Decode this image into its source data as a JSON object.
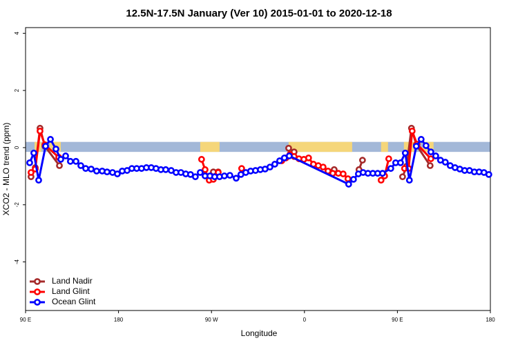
{
  "chart_data": {
    "type": "line",
    "title": "12.5N-17.5N January (Ver 10)   2015-01-01 to 2020-12-18",
    "x_label": "Longitude",
    "y_label": "XCO2 - MLO trend (ppm)",
    "xlim": [
      90,
      540
    ],
    "ylim": [
      -5.7,
      4.2
    ],
    "xticks": [
      {
        "value": 90,
        "label": "90 E"
      },
      {
        "value": 180,
        "label": "180"
      },
      {
        "value": 270,
        "label": "90 W"
      },
      {
        "value": 360,
        "label": "0"
      },
      {
        "value": 450,
        "label": "90 E"
      },
      {
        "value": 540,
        "label": "180"
      }
    ],
    "yticks": [
      4,
      2,
      0,
      -2,
      -4
    ],
    "band_ylim": [
      -0.15,
      0.2
    ],
    "band_color": "#a3b8d8",
    "land_color": "#f5d67a",
    "land_ranges": [
      [
        98.7,
        105.4
      ],
      [
        113.4,
        124.1
      ],
      [
        259.1,
        277.8
      ],
      [
        344.7,
        406.2
      ],
      [
        434.2,
        440.9
      ],
      [
        456.3,
        466.3
      ],
      [
        474.3,
        485.0
      ]
    ],
    "legend": "bottom-left",
    "series": [
      {
        "name": "Land Nadir",
        "color": "#a52a2a",
        "x": [
          95.3,
          99.4,
          104.0,
          108.7,
          122.8,
          null,
          271.8,
          276.5,
          null,
          344.7,
          350.0,
          null,
          388.8,
          null,
          412.8,
          416.2,
          null,
          455.0,
          459.0,
          463.6,
          468.3,
          481.7
        ],
        "values": [
          -1.02,
          -0.7,
          0.68,
          0.05,
          -0.63,
          null,
          -0.85,
          -0.85,
          null,
          -0.02,
          -0.15,
          null,
          -0.77,
          null,
          -0.77,
          -0.44,
          null,
          -1.02,
          -0.65,
          0.68,
          0.1,
          -0.63
        ]
      },
      {
        "name": "Land Glint",
        "color": "#ff0000",
        "x": [
          95.3,
          99.4,
          104.0,
          108.7,
          122.1,
          null,
          260.4,
          263.8,
          267.8,
          271.8,
          276.5,
          null,
          299.2,
          null,
          338.0,
          342.0,
          346.0,
          350.0,
          354.7,
          359.4,
          364.0,
          368.7,
          373.4,
          378.1,
          382.8,
          387.4,
          392.8,
          397.5,
          402.1,
          null,
          434.2,
          437.6,
          441.6,
          null,
          456.9,
          460.9,
          464.3,
          469.0,
          482.4
        ],
        "values": [
          -0.87,
          -0.75,
          0.58,
          0.1,
          -0.34,
          null,
          -0.41,
          -0.77,
          -1.14,
          -1.11,
          -0.87,
          null,
          -0.73,
          null,
          -0.46,
          -0.36,
          -0.24,
          -0.31,
          -0.39,
          -0.41,
          -0.36,
          -0.58,
          -0.63,
          -0.68,
          -0.82,
          -0.9,
          -0.9,
          -0.92,
          -1.09,
          null,
          -1.14,
          -0.99,
          -0.39,
          null,
          -0.73,
          -0.73,
          0.58,
          0.12,
          -0.39
        ]
      },
      {
        "name": "Ocean Glint",
        "color": "#0000ff",
        "x": [
          94.0,
          98.0,
          102.7,
          109.4,
          114.1,
          119.4,
          124.1,
          128.8,
          133.4,
          138.8,
          143.5,
          148.2,
          153.5,
          158.8,
          164.2,
          168.9,
          174.2,
          178.9,
          183.6,
          188.3,
          192.9,
          197.6,
          202.3,
          207.0,
          211.7,
          216.3,
          221.0,
          225.7,
          231.0,
          235.7,
          240.4,
          245.1,
          249.7,
          254.4,
          259.1,
          263.8,
          268.5,
          273.1,
          277.8,
          282.5,
          287.8,
          293.9,
          298.5,
          303.2,
          307.9,
          312.6,
          317.3,
          321.9,
          326.6,
          331.3,
          336.0,
          340.6,
          345.3,
          402.8,
          407.5,
          412.2,
          416.8,
          421.5,
          426.2,
          430.9,
          435.6,
          443.6,
          448.3,
          453.0,
          457.6,
          461.6,
          468.3,
          473.0,
          477.7,
          482.4,
          487.1,
          491.7,
          496.4,
          501.1,
          505.8,
          510.4,
          515.1,
          519.8,
          524.5,
          529.1,
          533.8,
          538.5
        ],
        "values": [
          -0.53,
          -0.19,
          -1.14,
          0.05,
          0.29,
          -0.05,
          -0.41,
          -0.29,
          -0.48,
          -0.48,
          -0.63,
          -0.73,
          -0.75,
          -0.82,
          -0.82,
          -0.85,
          -0.87,
          -0.92,
          -0.82,
          -0.8,
          -0.73,
          -0.73,
          -0.73,
          -0.7,
          -0.7,
          -0.73,
          -0.77,
          -0.77,
          -0.8,
          -0.87,
          -0.87,
          -0.92,
          -0.94,
          -1.02,
          -0.87,
          -0.99,
          -0.99,
          -1.02,
          -1.02,
          -0.99,
          -0.97,
          -1.07,
          -0.94,
          -0.87,
          -0.82,
          -0.8,
          -0.77,
          -0.75,
          -0.68,
          -0.58,
          -0.46,
          -0.36,
          -0.29,
          -1.28,
          -1.11,
          -0.92,
          -0.87,
          -0.9,
          -0.9,
          -0.9,
          -0.9,
          -0.73,
          -0.53,
          -0.53,
          -0.19,
          -1.14,
          0.05,
          0.29,
          0.07,
          -0.15,
          -0.29,
          -0.44,
          -0.51,
          -0.63,
          -0.7,
          -0.75,
          -0.8,
          -0.8,
          -0.85,
          -0.85,
          -0.87,
          -0.94
        ]
      }
    ]
  }
}
